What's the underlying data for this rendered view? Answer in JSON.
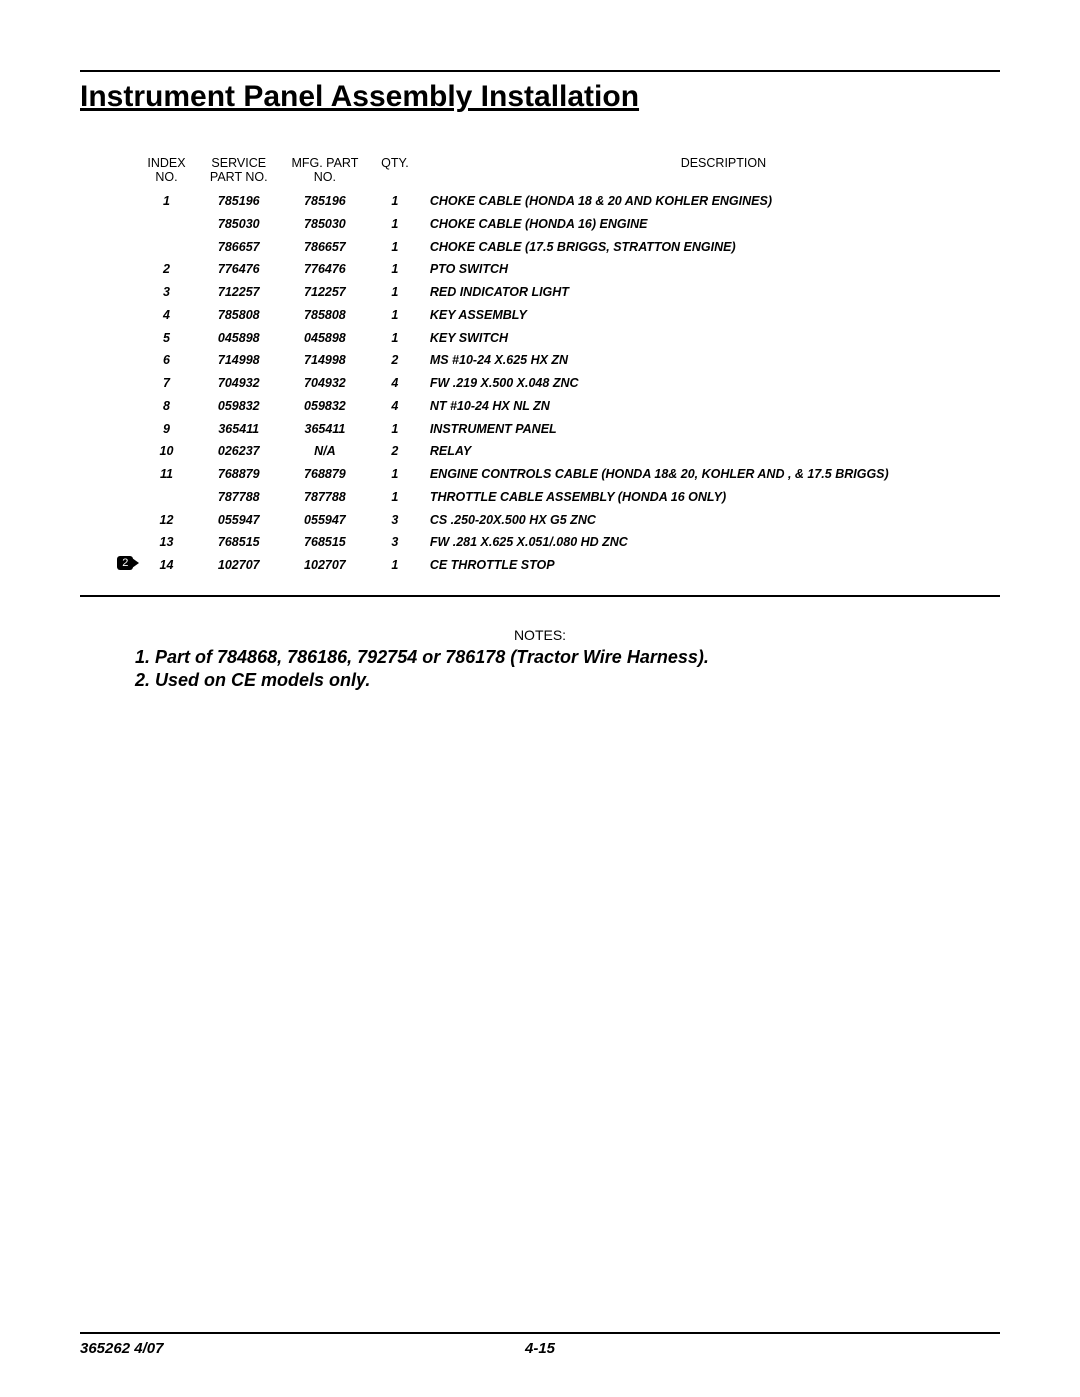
{
  "title": "Instrument Panel Assembly Installation",
  "table": {
    "headers": {
      "index": "INDEX NO.",
      "service": "SERVICE PART NO.",
      "mfg": "MFG. PART NO.",
      "qty": "QTY.",
      "desc": "DESCRIPTION"
    },
    "rows": [
      {
        "noteRef": "",
        "index": "1",
        "service": "785196",
        "mfg": "785196",
        "qty": "1",
        "desc": "CHOKE CABLE (HONDA 18 & 20 AND KOHLER ENGINES)"
      },
      {
        "noteRef": "",
        "index": "",
        "service": "785030",
        "mfg": "785030",
        "qty": "1",
        "desc": "CHOKE CABLE (HONDA 16) ENGINE"
      },
      {
        "noteRef": "",
        "index": "",
        "service": "786657",
        "mfg": "786657",
        "qty": "1",
        "desc": "CHOKE CABLE (17.5 BRIGGS, STRATTON ENGINE)"
      },
      {
        "noteRef": "",
        "index": "2",
        "service": "776476",
        "mfg": "776476",
        "qty": "1",
        "desc": "PTO SWITCH"
      },
      {
        "noteRef": "",
        "index": "3",
        "service": "712257",
        "mfg": "712257",
        "qty": "1",
        "desc": "RED INDICATOR LIGHT"
      },
      {
        "noteRef": "",
        "index": "4",
        "service": "785808",
        "mfg": "785808",
        "qty": "1",
        "desc": "KEY ASSEMBLY"
      },
      {
        "noteRef": "",
        "index": "5",
        "service": "045898",
        "mfg": "045898",
        "qty": "1",
        "desc": "KEY SWITCH"
      },
      {
        "noteRef": "",
        "index": "6",
        "service": "714998",
        "mfg": "714998",
        "qty": "2",
        "desc": "MS #10-24 X.625 HX ZN"
      },
      {
        "noteRef": "",
        "index": "7",
        "service": "704932",
        "mfg": "704932",
        "qty": "4",
        "desc": "FW .219 X.500 X.048 ZNC"
      },
      {
        "noteRef": "",
        "index": "8",
        "service": "059832",
        "mfg": "059832",
        "qty": "4",
        "desc": "NT #10-24 HX NL ZN"
      },
      {
        "noteRef": "",
        "index": "9",
        "service": "365411",
        "mfg": "365411",
        "qty": "1",
        "desc": "INSTRUMENT PANEL"
      },
      {
        "noteRef": "",
        "index": "10",
        "service": "026237",
        "mfg": "N/A",
        "qty": "2",
        "desc": "RELAY"
      },
      {
        "noteRef": "",
        "index": "11",
        "service": "768879",
        "mfg": "768879",
        "qty": "1",
        "desc": "ENGINE CONTROLS CABLE (HONDA 18& 20,  KOHLER AND , & 17.5 BRIGGS)"
      },
      {
        "noteRef": "",
        "index": "",
        "service": "787788",
        "mfg": "787788",
        "qty": "1",
        "desc": "THROTTLE CABLE ASSEMBLY (HONDA 16 ONLY)"
      },
      {
        "noteRef": "",
        "index": "12",
        "service": "055947",
        "mfg": "055947",
        "qty": "3",
        "desc": "CS .250-20X.500 HX G5 ZNC"
      },
      {
        "noteRef": "",
        "index": "13",
        "service": "768515",
        "mfg": "768515",
        "qty": "3",
        "desc": "FW .281 X.625 X.051/.080 HD ZNC"
      },
      {
        "noteRef": "2",
        "index": "14",
        "service": "102707",
        "mfg": "102707",
        "qty": "1",
        "desc": "CE THROTTLE STOP"
      }
    ]
  },
  "notesHeading": "NOTES:",
  "notes": [
    "1.  Part of 784868, 786186, 792754 or 786178 (Tractor Wire Harness).",
    "2.  Used on CE models only."
  ],
  "footer": {
    "left": "365262 4/07",
    "center": "4-15"
  }
}
